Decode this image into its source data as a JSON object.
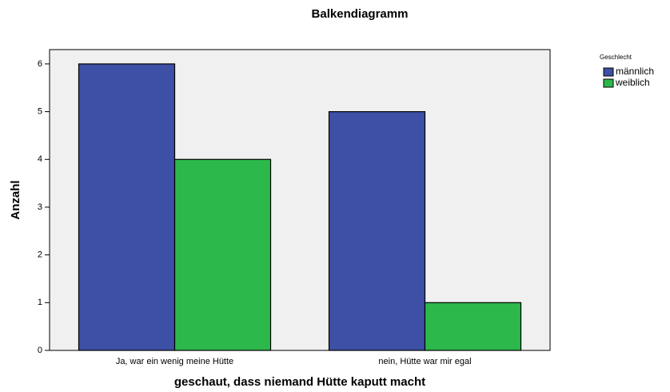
{
  "chart_data": {
    "type": "bar",
    "title": "Balkendiagramm",
    "x_label": "geschaut, dass niemand Hütte kaputt macht",
    "y_label": "Anzahl",
    "categories": [
      "Ja, war ein wenig meine Hütte",
      "nein, Hütte war mir egal"
    ],
    "series": [
      {
        "name": "männlich",
        "color": "#3d50a5",
        "values": [
          6,
          5
        ]
      },
      {
        "name": "weiblich",
        "color": "#2db84b",
        "values": [
          4,
          1
        ]
      }
    ],
    "legend_title": "Geschlecht",
    "legend_position": "right",
    "ylim": [
      0,
      6.3
    ],
    "yticks": [
      0,
      1,
      2,
      3,
      4,
      5,
      6
    ]
  }
}
